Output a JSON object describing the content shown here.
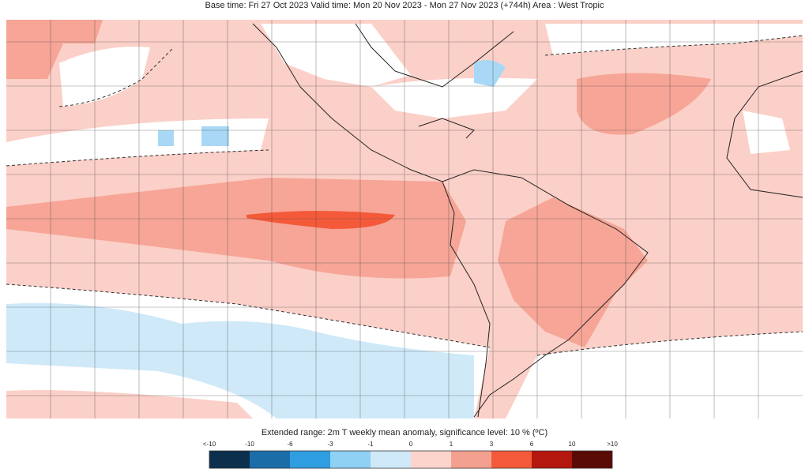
{
  "header": {
    "title": "Base time: Fri 27 Oct 2023 Valid time: Mon 20 Nov 2023 - Mon 27 Nov 2023 (+744h) Area : West Tropic"
  },
  "legend": {
    "title": "Extended range: 2m T weekly mean anomaly, significance level: 10 % (ºC)",
    "ticks": [
      "<-10",
      "-10",
      "-6",
      "-3",
      "-1",
      "0",
      "1",
      "3",
      "6",
      "10",
      ">10"
    ],
    "colors": [
      "#0b2f4d",
      "#1b6da8",
      "#2f9ee0",
      "#8fd0f5",
      "#cfe9f9",
      "#fcd4cc",
      "#f4a090",
      "#f45a3a",
      "#b3170e",
      "#5a0b05"
    ]
  }
}
